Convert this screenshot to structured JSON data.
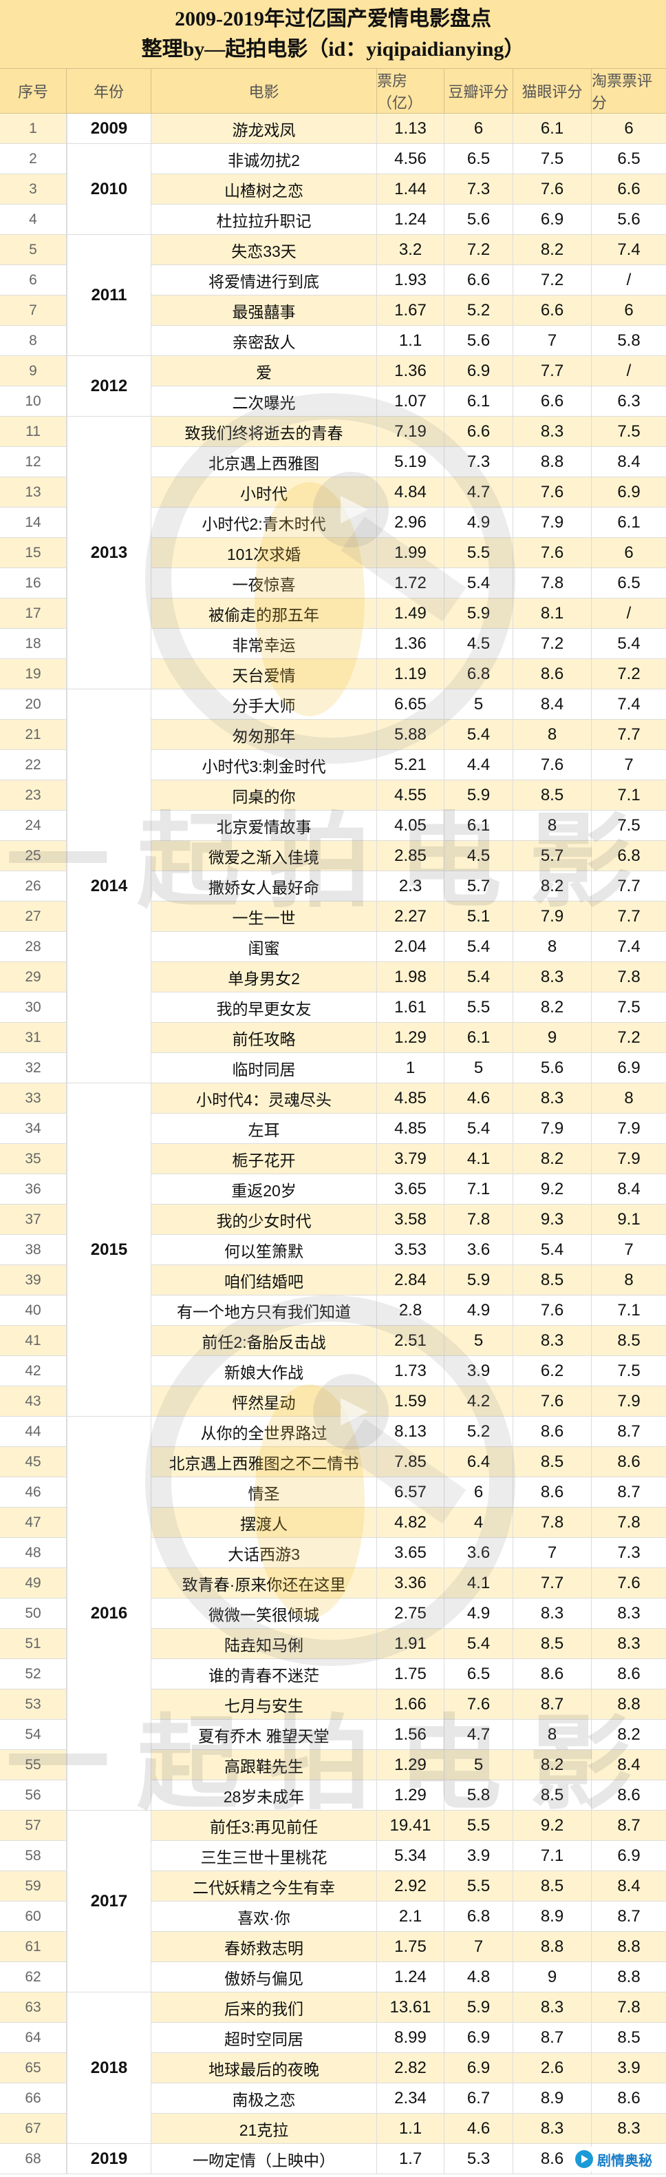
{
  "title": {
    "line1": "2009-2019年过亿国产爱情电影盘点",
    "line2": "整理by—起拍电影（id：yiqipaidianying）"
  },
  "headers": {
    "index": "序号",
    "year": "年份",
    "movie": "电影",
    "box_office": "票房（亿）",
    "douban": "豆瓣评分",
    "maoyan": "猫眼评分",
    "taopiao": "淘票票评分"
  },
  "watermark_text": "一起拍电影",
  "brand_badge": "剧情奥秘",
  "year_groups": [
    {
      "year": "2009",
      "start": 1,
      "end": 1
    },
    {
      "year": "2010",
      "start": 2,
      "end": 4
    },
    {
      "year": "2011",
      "start": 5,
      "end": 8
    },
    {
      "year": "2012",
      "start": 9,
      "end": 10
    },
    {
      "year": "2013",
      "start": 11,
      "end": 19
    },
    {
      "year": "2014",
      "start": 20,
      "end": 32
    },
    {
      "year": "2015",
      "start": 33,
      "end": 43
    },
    {
      "year": "2016",
      "start": 44,
      "end": 56
    },
    {
      "year": "2017",
      "start": 57,
      "end": 62
    },
    {
      "year": "2018",
      "start": 63,
      "end": 67
    },
    {
      "year": "2019",
      "start": 68,
      "end": 68
    }
  ],
  "rows": [
    {
      "n": "1",
      "movie": "游龙戏凤",
      "box": "1.13",
      "douban": "6",
      "maoyan": "6.1",
      "taopiao": "6"
    },
    {
      "n": "2",
      "movie": "非诚勿扰2",
      "box": "4.56",
      "douban": "6.5",
      "maoyan": "7.5",
      "taopiao": "6.5"
    },
    {
      "n": "3",
      "movie": "山楂树之恋",
      "box": "1.44",
      "douban": "7.3",
      "maoyan": "7.6",
      "taopiao": "6.6"
    },
    {
      "n": "4",
      "movie": "杜拉拉升职记",
      "box": "1.24",
      "douban": "5.6",
      "maoyan": "6.9",
      "taopiao": "5.6"
    },
    {
      "n": "5",
      "movie": "失恋33天",
      "box": "3.2",
      "douban": "7.2",
      "maoyan": "8.2",
      "taopiao": "7.4"
    },
    {
      "n": "6",
      "movie": "将爱情进行到底",
      "box": "1.93",
      "douban": "6.6",
      "maoyan": "7.2",
      "taopiao": "/"
    },
    {
      "n": "7",
      "movie": "最强囍事",
      "box": "1.67",
      "douban": "5.2",
      "maoyan": "6.6",
      "taopiao": "6"
    },
    {
      "n": "8",
      "movie": "亲密敌人",
      "box": "1.1",
      "douban": "5.6",
      "maoyan": "7",
      "taopiao": "5.8"
    },
    {
      "n": "9",
      "movie": "爱",
      "box": "1.36",
      "douban": "6.9",
      "maoyan": "7.7",
      "taopiao": "/"
    },
    {
      "n": "10",
      "movie": "二次曝光",
      "box": "1.07",
      "douban": "6.1",
      "maoyan": "6.6",
      "taopiao": "6.3"
    },
    {
      "n": "11",
      "movie": "致我们终将逝去的青春",
      "box": "7.19",
      "douban": "6.6",
      "maoyan": "8.3",
      "taopiao": "7.5"
    },
    {
      "n": "12",
      "movie": "北京遇上西雅图",
      "box": "5.19",
      "douban": "7.3",
      "maoyan": "8.8",
      "taopiao": "8.4"
    },
    {
      "n": "13",
      "movie": "小时代",
      "box": "4.84",
      "douban": "4.7",
      "maoyan": "7.6",
      "taopiao": "6.9"
    },
    {
      "n": "14",
      "movie": "小时代2:青木时代",
      "box": "2.96",
      "douban": "4.9",
      "maoyan": "7.9",
      "taopiao": "6.1"
    },
    {
      "n": "15",
      "movie": "101次求婚",
      "box": "1.99",
      "douban": "5.5",
      "maoyan": "7.6",
      "taopiao": "6"
    },
    {
      "n": "16",
      "movie": "一夜惊喜",
      "box": "1.72",
      "douban": "5.4",
      "maoyan": "7.8",
      "taopiao": "6.5"
    },
    {
      "n": "17",
      "movie": "被偷走的那五年",
      "box": "1.49",
      "douban": "5.9",
      "maoyan": "8.1",
      "taopiao": "/"
    },
    {
      "n": "18",
      "movie": "非常幸运",
      "box": "1.36",
      "douban": "4.5",
      "maoyan": "7.2",
      "taopiao": "5.4"
    },
    {
      "n": "19",
      "movie": "天台爱情",
      "box": "1.19",
      "douban": "6.8",
      "maoyan": "8.6",
      "taopiao": "7.2"
    },
    {
      "n": "20",
      "movie": "分手大师",
      "box": "6.65",
      "douban": "5",
      "maoyan": "8.4",
      "taopiao": "7.4"
    },
    {
      "n": "21",
      "movie": "匆匆那年",
      "box": "5.88",
      "douban": "5.4",
      "maoyan": "8",
      "taopiao": "7.7"
    },
    {
      "n": "22",
      "movie": "小时代3:刺金时代",
      "box": "5.21",
      "douban": "4.4",
      "maoyan": "7.6",
      "taopiao": "7"
    },
    {
      "n": "23",
      "movie": "同桌的你",
      "box": "4.55",
      "douban": "5.9",
      "maoyan": "8.5",
      "taopiao": "7.1"
    },
    {
      "n": "24",
      "movie": "北京爱情故事",
      "box": "4.05",
      "douban": "6.1",
      "maoyan": "8",
      "taopiao": "7.5"
    },
    {
      "n": "25",
      "movie": "微爱之渐入佳境",
      "box": "2.85",
      "douban": "4.5",
      "maoyan": "5.7",
      "taopiao": "6.8"
    },
    {
      "n": "26",
      "movie": "撒娇女人最好命",
      "box": "2.3",
      "douban": "5.7",
      "maoyan": "8.2",
      "taopiao": "7.7"
    },
    {
      "n": "27",
      "movie": "一生一世",
      "box": "2.27",
      "douban": "5.1",
      "maoyan": "7.9",
      "taopiao": "7.7"
    },
    {
      "n": "28",
      "movie": "闺蜜",
      "box": "2.04",
      "douban": "5.4",
      "maoyan": "8",
      "taopiao": "7.4"
    },
    {
      "n": "29",
      "movie": "单身男女2",
      "box": "1.98",
      "douban": "5.4",
      "maoyan": "8.3",
      "taopiao": "7.8"
    },
    {
      "n": "30",
      "movie": "我的早更女友",
      "box": "1.61",
      "douban": "5.5",
      "maoyan": "8.2",
      "taopiao": "7.5"
    },
    {
      "n": "31",
      "movie": "前任攻略",
      "box": "1.29",
      "douban": "6.1",
      "maoyan": "9",
      "taopiao": "7.2"
    },
    {
      "n": "32",
      "movie": "临时同居",
      "box": "1",
      "douban": "5",
      "maoyan": "5.6",
      "taopiao": "6.9"
    },
    {
      "n": "33",
      "movie": "小时代4：灵魂尽头",
      "box": "4.85",
      "douban": "4.6",
      "maoyan": "8.3",
      "taopiao": "8"
    },
    {
      "n": "34",
      "movie": "左耳",
      "box": "4.85",
      "douban": "5.4",
      "maoyan": "7.9",
      "taopiao": "7.9"
    },
    {
      "n": "35",
      "movie": "栀子花开",
      "box": "3.79",
      "douban": "4.1",
      "maoyan": "8.2",
      "taopiao": "7.9"
    },
    {
      "n": "36",
      "movie": "重返20岁",
      "box": "3.65",
      "douban": "7.1",
      "maoyan": "9.2",
      "taopiao": "8.4"
    },
    {
      "n": "37",
      "movie": "我的少女时代",
      "box": "3.58",
      "douban": "7.8",
      "maoyan": "9.3",
      "taopiao": "9.1"
    },
    {
      "n": "38",
      "movie": "何以笙箫默",
      "box": "3.53",
      "douban": "3.6",
      "maoyan": "5.4",
      "taopiao": "7"
    },
    {
      "n": "39",
      "movie": "咱们结婚吧",
      "box": "2.84",
      "douban": "5.9",
      "maoyan": "8.5",
      "taopiao": "8"
    },
    {
      "n": "40",
      "movie": "有一个地方只有我们知道",
      "box": "2.8",
      "douban": "4.9",
      "maoyan": "7.6",
      "taopiao": "7.1"
    },
    {
      "n": "41",
      "movie": "前任2:备胎反击战",
      "box": "2.51",
      "douban": "5",
      "maoyan": "8.3",
      "taopiao": "8.5"
    },
    {
      "n": "42",
      "movie": "新娘大作战",
      "box": "1.73",
      "douban": "3.9",
      "maoyan": "6.2",
      "taopiao": "7.5"
    },
    {
      "n": "43",
      "movie": "怦然星动",
      "box": "1.59",
      "douban": "4.2",
      "maoyan": "7.6",
      "taopiao": "7.9"
    },
    {
      "n": "44",
      "movie": "从你的全世界路过",
      "box": "8.13",
      "douban": "5.2",
      "maoyan": "8.6",
      "taopiao": "8.7"
    },
    {
      "n": "45",
      "movie": "北京遇上西雅图之不二情书",
      "box": "7.85",
      "douban": "6.4",
      "maoyan": "8.5",
      "taopiao": "8.6"
    },
    {
      "n": "46",
      "movie": "情圣",
      "box": "6.57",
      "douban": "6",
      "maoyan": "8.6",
      "taopiao": "8.7"
    },
    {
      "n": "47",
      "movie": "摆渡人",
      "box": "4.82",
      "douban": "4",
      "maoyan": "7.8",
      "taopiao": "7.8"
    },
    {
      "n": "48",
      "movie": "大话西游3",
      "box": "3.65",
      "douban": "3.6",
      "maoyan": "7",
      "taopiao": "7.3"
    },
    {
      "n": "49",
      "movie": "致青春·原来你还在这里",
      "box": "3.36",
      "douban": "4.1",
      "maoyan": "7.7",
      "taopiao": "7.6"
    },
    {
      "n": "50",
      "movie": "微微一笑很倾城",
      "box": "2.75",
      "douban": "4.9",
      "maoyan": "8.3",
      "taopiao": "8.3"
    },
    {
      "n": "51",
      "movie": "陆垚知马俐",
      "box": "1.91",
      "douban": "5.4",
      "maoyan": "8.5",
      "taopiao": "8.3"
    },
    {
      "n": "52",
      "movie": "谁的青春不迷茫",
      "box": "1.75",
      "douban": "6.5",
      "maoyan": "8.6",
      "taopiao": "8.6"
    },
    {
      "n": "53",
      "movie": "七月与安生",
      "box": "1.66",
      "douban": "7.6",
      "maoyan": "8.7",
      "taopiao": "8.8"
    },
    {
      "n": "54",
      "movie": "夏有乔木 雅望天堂",
      "box": "1.56",
      "douban": "4.7",
      "maoyan": "8",
      "taopiao": "8.2"
    },
    {
      "n": "55",
      "movie": "高跟鞋先生",
      "box": "1.29",
      "douban": "5",
      "maoyan": "8.2",
      "taopiao": "8.4"
    },
    {
      "n": "56",
      "movie": "28岁未成年",
      "box": "1.29",
      "douban": "5.8",
      "maoyan": "8.5",
      "taopiao": "8.6"
    },
    {
      "n": "57",
      "movie": "前任3:再见前任",
      "box": "19.41",
      "douban": "5.5",
      "maoyan": "9.2",
      "taopiao": "8.7"
    },
    {
      "n": "58",
      "movie": "三生三世十里桃花",
      "box": "5.34",
      "douban": "3.9",
      "maoyan": "7.1",
      "taopiao": "6.9"
    },
    {
      "n": "59",
      "movie": "二代妖精之今生有幸",
      "box": "2.92",
      "douban": "5.5",
      "maoyan": "8.5",
      "taopiao": "8.4"
    },
    {
      "n": "60",
      "movie": "喜欢·你",
      "box": "2.1",
      "douban": "6.8",
      "maoyan": "8.9",
      "taopiao": "8.7"
    },
    {
      "n": "61",
      "movie": "春娇救志明",
      "box": "1.75",
      "douban": "7",
      "maoyan": "8.8",
      "taopiao": "8.8"
    },
    {
      "n": "62",
      "movie": "傲娇与偏见",
      "box": "1.24",
      "douban": "4.8",
      "maoyan": "9",
      "taopiao": "8.8"
    },
    {
      "n": "63",
      "movie": "后来的我们",
      "box": "13.61",
      "douban": "5.9",
      "maoyan": "8.3",
      "taopiao": "7.8"
    },
    {
      "n": "64",
      "movie": "超时空同居",
      "box": "8.99",
      "douban": "6.9",
      "maoyan": "8.7",
      "taopiao": "8.5"
    },
    {
      "n": "65",
      "movie": "地球最后的夜晚",
      "box": "2.82",
      "douban": "6.9",
      "maoyan": "2.6",
      "taopiao": "3.9"
    },
    {
      "n": "66",
      "movie": "南极之恋",
      "box": "2.34",
      "douban": "6.7",
      "maoyan": "8.9",
      "taopiao": "8.6"
    },
    {
      "n": "67",
      "movie": "21克拉",
      "box": "1.1",
      "douban": "4.6",
      "maoyan": "8.3",
      "taopiao": "8.3"
    },
    {
      "n": "68",
      "movie": "一吻定情（上映中）",
      "box": "1.7",
      "douban": "5.3",
      "maoyan": "8.6",
      "taopiao": ""
    }
  ]
}
